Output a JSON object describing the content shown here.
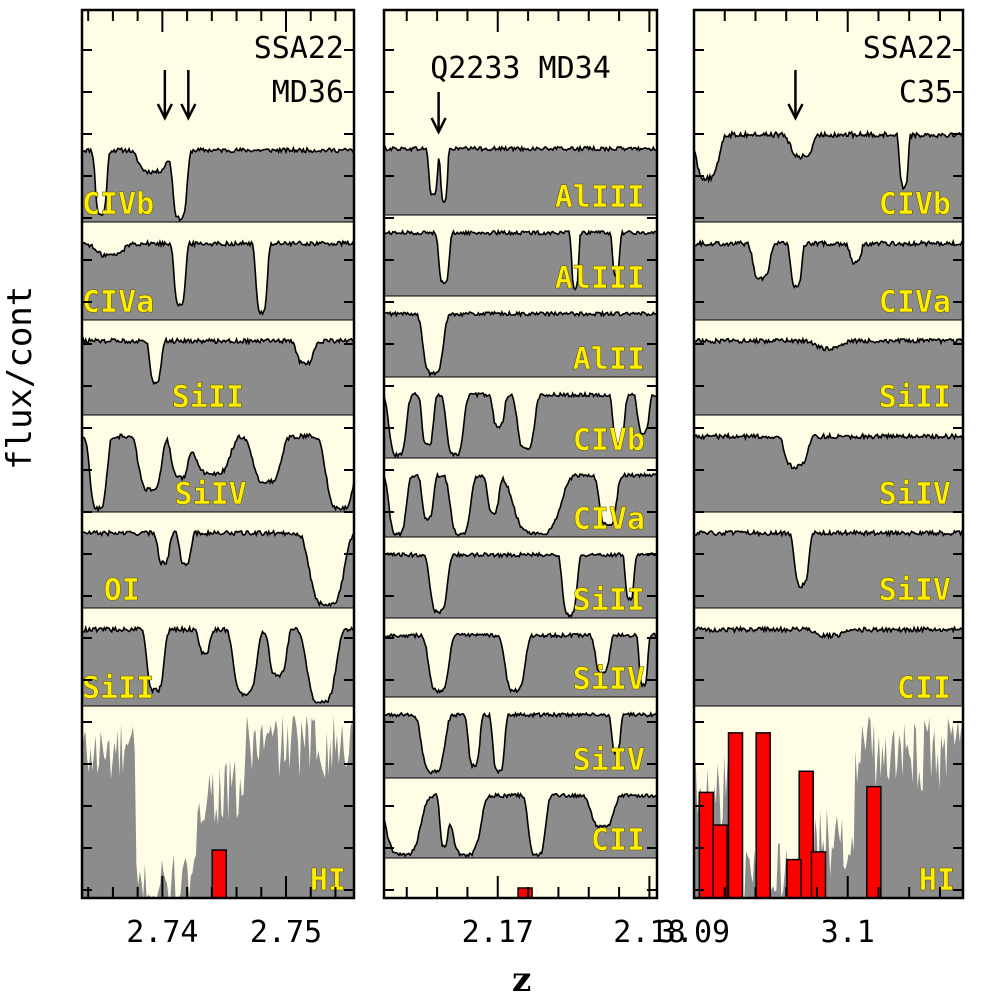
{
  "chart_data": {
    "type": "area",
    "ylabel": "flux/cont",
    "xlabel": "z",
    "colors": {
      "background": "#fffde6",
      "fill": "#8c8c8c",
      "line": "#000000",
      "label": "#ffee00",
      "bar": "#ff0000"
    },
    "panels": [
      {
        "title_lines": [
          "SSA22",
          "MD36"
        ],
        "xlim": [
          2.7335,
          2.7555
        ],
        "xticks": [
          2.74,
          2.75
        ],
        "xtick_labels": [
          "2.74",
          "2.75"
        ],
        "arrows_z": [
          2.7402,
          2.7421
        ],
        "strips": [
          "CIVb",
          "CIVa",
          "SiII",
          "SiIV",
          "OI",
          "SiII"
        ],
        "hi_label": "HI",
        "hi_bars": [
          {
            "z": 2.7446,
            "height": 0.25
          }
        ]
      },
      {
        "title_lines": [
          "Q2233 MD34"
        ],
        "xlim": [
          2.1625,
          2.1805
        ],
        "xticks": [
          2.17,
          2.18
        ],
        "xtick_labels": [
          "2.17",
          "2.18"
        ],
        "arrows_z": [
          2.1661
        ],
        "strips": [
          "AlIII",
          "AlIII",
          "AlII",
          "CIVb",
          "CIVa",
          "SiII",
          "SiIV",
          "SiIV",
          "CII"
        ],
        "hi_label": "",
        "hi_bars": [
          {
            "z": 2.1718,
            "height": 0.25
          }
        ]
      },
      {
        "title_lines": [
          "SSA22",
          "C35"
        ],
        "xlim": [
          3.09,
          3.1075
        ],
        "xticks": [
          3.09,
          3.1
        ],
        "xtick_labels": [
          "3.09",
          "3.1"
        ],
        "arrows_z": [
          3.0966
        ],
        "strips": [
          "CIVb",
          "CIVa",
          "SiII",
          "SiIV",
          "SiIV",
          "CII"
        ],
        "hi_label": "HI",
        "hi_bars": [
          {
            "z": 3.0908,
            "height": 0.55
          },
          {
            "z": 3.0917,
            "height": 0.38
          },
          {
            "z": 3.0927,
            "height": 0.86
          },
          {
            "z": 3.0945,
            "height": 0.86
          },
          {
            "z": 3.0973,
            "height": 0.66
          },
          {
            "z": 3.0965,
            "height": 0.2
          },
          {
            "z": 3.0981,
            "height": 0.24
          },
          {
            "z": 3.1017,
            "height": 0.58
          }
        ]
      }
    ]
  }
}
